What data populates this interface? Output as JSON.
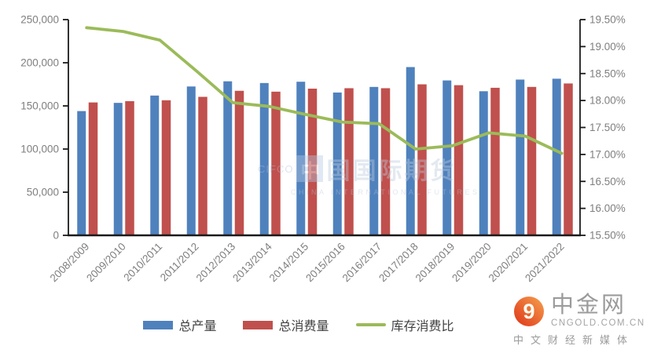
{
  "chart_data": {
    "type": "bar",
    "subtype": "bar-line-combo",
    "title": "",
    "grid": false,
    "legend_position": "bottom",
    "categories": [
      "2008/2009",
      "2009/2010",
      "2010/2011",
      "2011/2012",
      "2012/2013",
      "2013/2014",
      "2014/2015",
      "2015/2016",
      "2016/2017",
      "2017/2018",
      "2018/2019",
      "2019/2020",
      "2020/2021",
      "2021/2022"
    ],
    "series": [
      {
        "name": "总产量",
        "type": "bar",
        "axis": "left",
        "color": "#4F81BD",
        "values": [
          144000,
          153500,
          162000,
          172500,
          178500,
          176500,
          178000,
          165500,
          172000,
          195000,
          179500,
          167000,
          180500,
          181500
        ]
      },
      {
        "name": "总消费量",
        "type": "bar",
        "axis": "left",
        "color": "#C0504D",
        "values": [
          154000,
          155500,
          156500,
          160500,
          167500,
          166500,
          170000,
          170500,
          170500,
          175000,
          174000,
          171000,
          172000,
          176000
        ]
      },
      {
        "name": "库存消费比",
        "type": "line",
        "axis": "right",
        "color": "#9BBB59",
        "values": [
          19.35,
          19.28,
          19.12,
          18.55,
          17.96,
          17.89,
          17.74,
          17.6,
          17.57,
          17.1,
          17.16,
          17.4,
          17.34,
          17.02
        ]
      }
    ],
    "y_left": {
      "min": 0,
      "max": 250000,
      "ticks": [
        "0",
        "50,000",
        "100,000",
        "150,000",
        "200,000",
        "250,000"
      ]
    },
    "y_right": {
      "min": 15.5,
      "max": 19.5,
      "ticks": [
        "15.50%",
        "16.00%",
        "16.50%",
        "17.00%",
        "17.50%",
        "18.00%",
        "18.50%",
        "19.00%",
        "19.50%"
      ]
    }
  },
  "watermark": {
    "pre": "CIFCO",
    "logo_char": "中",
    "text": "国国际期货",
    "subtext": "CHINA INTERNATIONAL FUTURES"
  },
  "footer_logo": {
    "name": "中金网",
    "domain": "CNGOLD.COM.CN",
    "tagline": "中文财经新媒体"
  },
  "colors": {
    "production_bar": "#4F81BD",
    "consumption_bar": "#C0504D",
    "ratio_line": "#9BBB59",
    "axis_line": "#1a1a1a",
    "axis_text": "#7f7f7f",
    "legend_text": "#404040",
    "logo_red": "#DE3418",
    "logo_orange": "#F6A04E",
    "logo_text": "#9B9B9B"
  }
}
